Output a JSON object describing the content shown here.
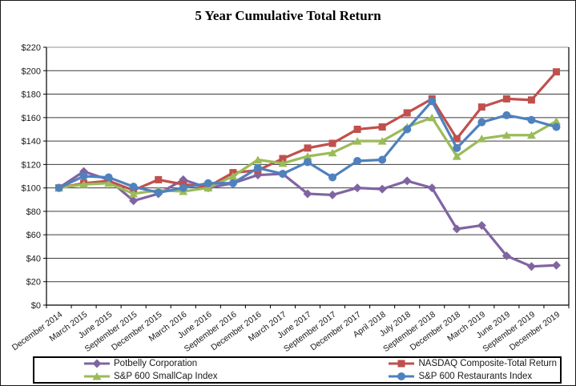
{
  "title": "5 Year Cumulative Total Return",
  "chart_data": {
    "type": "line",
    "title": "5 Year Cumulative Total Return",
    "categories": [
      "December 2014",
      "March 2015",
      "June 2015",
      "September 2015",
      "December 2015",
      "March 2016",
      "June 2016",
      "September 2016",
      "December 2016",
      "March 2017",
      "June 2017",
      "September 2017",
      "December 2017",
      "April 2018",
      "July 2018",
      "September 2018",
      "December 2018",
      "March 2019",
      "June 2019",
      "September 2019",
      "December 2019"
    ],
    "series": [
      {
        "name": "Potbelly Corporation",
        "color": "#8064A2",
        "marker": "diamond",
        "values": [
          100,
          114,
          107,
          89,
          95,
          107,
          100,
          104,
          111,
          112,
          95,
          94,
          100,
          99,
          106,
          100,
          65,
          68,
          42,
          33,
          34
        ]
      },
      {
        "name": "NASDAQ Composite-Total Return",
        "color": "#C0504D",
        "marker": "square",
        "values": [
          100,
          104,
          106,
          98,
          107,
          103,
          101,
          113,
          115,
          125,
          134,
          138,
          150,
          152,
          164,
          176,
          142,
          169,
          176,
          175,
          199
        ]
      },
      {
        "name": "S&P 600 SmallCap Index",
        "color": "#9BBB59",
        "marker": "triangle",
        "values": [
          100,
          103,
          104,
          95,
          98,
          97,
          100,
          110,
          124,
          121,
          127,
          130,
          140,
          140,
          152,
          160,
          127,
          142,
          145,
          145,
          157
        ]
      },
      {
        "name": "S&P 600 Restaurants Index",
        "color": "#4F81BD",
        "marker": "circle",
        "values": [
          100,
          110,
          109,
          101,
          96,
          100,
          104,
          104,
          117,
          112,
          122,
          109,
          123,
          124,
          150,
          174,
          134,
          156,
          162,
          158,
          152
        ]
      }
    ],
    "ylim": [
      0,
      220
    ],
    "ytick_step": 20,
    "ytick_labels": [
      "$0",
      "$20",
      "$40",
      "$60",
      "$80",
      "$100",
      "$120",
      "$140",
      "$160",
      "$180",
      "$200",
      "$220"
    ],
    "grid": true,
    "legend_position": "bottom",
    "axis_color": "#000000",
    "gridline_color": "#3c3c3c"
  }
}
